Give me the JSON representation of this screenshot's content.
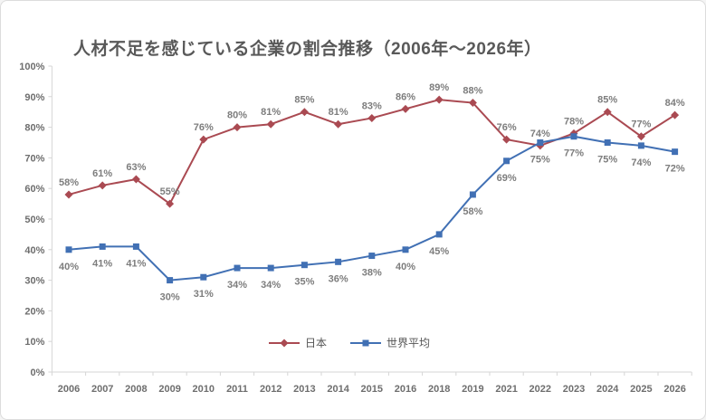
{
  "title": "人材不足を感じている企業の割合推移（2006年～2026年）",
  "chart_data": {
    "type": "line",
    "title": "人材不足を感じている企業の割合推移（2006年～2026年）",
    "categories": [
      "2006",
      "2007",
      "2008",
      "2009",
      "2010",
      "2011",
      "2012",
      "2013",
      "2014",
      "2015",
      "2016",
      "2018",
      "2019",
      "2021",
      "2022",
      "2023",
      "2024",
      "2025",
      "2026"
    ],
    "series": [
      {
        "name": "日本",
        "color": "#aa4a52",
        "marker": "diamond",
        "label_position": "above",
        "values": [
          58,
          61,
          63,
          55,
          76,
          80,
          81,
          85,
          81,
          83,
          86,
          89,
          88,
          76,
          74,
          78,
          85,
          77,
          84
        ]
      },
      {
        "name": "世界平均",
        "color": "#4170b4",
        "marker": "square",
        "label_position": "below",
        "values": [
          40,
          41,
          41,
          30,
          31,
          34,
          34,
          35,
          36,
          38,
          40,
          45,
          58,
          69,
          75,
          77,
          75,
          74,
          72
        ]
      }
    ],
    "y_ticks": [
      "0%",
      "10%",
      "20%",
      "30%",
      "40%",
      "50%",
      "60%",
      "70%",
      "80%",
      "90%",
      "100%"
    ],
    "ylim": [
      0,
      100
    ],
    "xlabel": "",
    "ylabel": "",
    "grid": false,
    "data_labels": "percent",
    "legend_position": "bottom-center",
    "axis_color": "#d6d6d6",
    "label_color": "#7d7d7d",
    "tick_label_color": "#6e6e6e"
  }
}
